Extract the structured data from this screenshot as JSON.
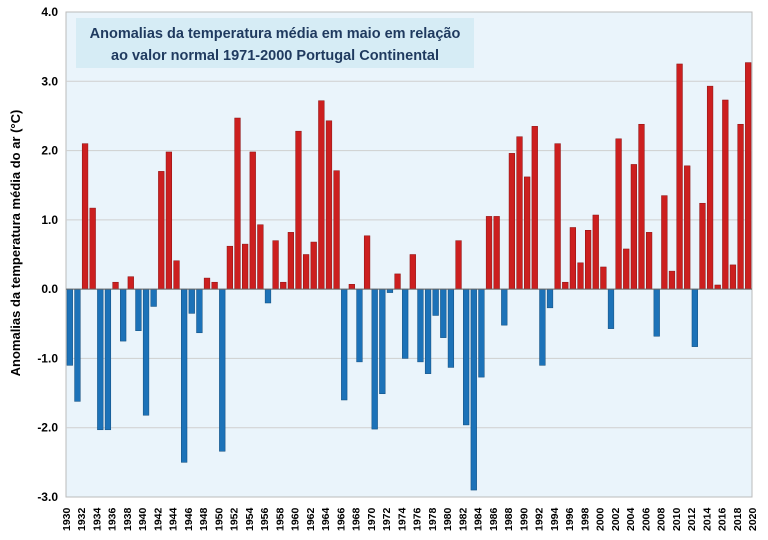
{
  "chart_data": {
    "type": "bar",
    "title_lines": [
      "Anomalias da temperatura média em maio em relação",
      "ao valor normal 1971-2000 Portugal Continental"
    ],
    "ylabel": "Anomalias da temperatura média do ar (°C)",
    "xlabel": "",
    "ylim": [
      -3.0,
      4.0
    ],
    "yticks": [
      "4.0",
      "3.0",
      "2.0",
      "1.0",
      "0.0",
      "-1.0",
      "-2.0",
      "-3.0"
    ],
    "ytick_values": [
      4,
      3,
      2,
      1,
      0,
      -1,
      -2,
      -3
    ],
    "x_start": 1931,
    "x_end": 2020,
    "xtick_labels": [
      "1930",
      "1932",
      "1934",
      "1936",
      "1938",
      "1940",
      "1942",
      "1944",
      "1946",
      "1948",
      "1950",
      "1952",
      "1954",
      "1956",
      "1958",
      "1960",
      "1962",
      "1964",
      "1966",
      "1968",
      "1970",
      "1972",
      "1974",
      "1976",
      "1978",
      "1980",
      "1982",
      "1984",
      "1986",
      "1988",
      "1990",
      "1992",
      "1994",
      "1996",
      "1998",
      "2000",
      "2002",
      "2004",
      "2006",
      "2008",
      "2010",
      "2012",
      "2014",
      "2016",
      "2018",
      "2020"
    ],
    "xtick_years": [
      1930,
      1932,
      1934,
      1936,
      1938,
      1940,
      1942,
      1944,
      1946,
      1948,
      1950,
      1952,
      1954,
      1956,
      1958,
      1960,
      1962,
      1964,
      1966,
      1968,
      1970,
      1972,
      1974,
      1976,
      1978,
      1980,
      1982,
      1984,
      1986,
      1988,
      1990,
      1992,
      1994,
      1996,
      1998,
      2000,
      2002,
      2004,
      2006,
      2008,
      2010,
      2012,
      2014,
      2016,
      2018,
      2020
    ],
    "years": [
      1931,
      1932,
      1933,
      1934,
      1935,
      1936,
      1937,
      1938,
      1939,
      1940,
      1941,
      1942,
      1943,
      1944,
      1945,
      1946,
      1947,
      1948,
      1949,
      1950,
      1951,
      1952,
      1953,
      1954,
      1955,
      1956,
      1957,
      1958,
      1959,
      1960,
      1961,
      1962,
      1963,
      1964,
      1965,
      1966,
      1967,
      1968,
      1969,
      1970,
      1971,
      1972,
      1973,
      1974,
      1975,
      1976,
      1977,
      1978,
      1979,
      1980,
      1981,
      1982,
      1983,
      1984,
      1985,
      1986,
      1987,
      1988,
      1989,
      1990,
      1991,
      1992,
      1993,
      1994,
      1995,
      1996,
      1997,
      1998,
      1999,
      2000,
      2001,
      2002,
      2003,
      2004,
      2005,
      2006,
      2007,
      2008,
      2009,
      2010,
      2011,
      2012,
      2013,
      2014,
      2015,
      2016,
      2017,
      2018,
      2019,
      2020
    ],
    "values": [
      -1.1,
      -1.62,
      2.1,
      1.17,
      -2.03,
      -2.03,
      0.1,
      -0.75,
      0.18,
      -0.6,
      -1.82,
      -0.25,
      1.7,
      1.98,
      0.41,
      -2.5,
      -0.35,
      -0.63,
      0.16,
      0.1,
      -2.34,
      0.62,
      2.47,
      0.65,
      1.98,
      0.93,
      -0.2,
      0.7,
      0.1,
      0.82,
      2.28,
      0.5,
      0.68,
      2.72,
      2.43,
      1.71,
      -1.6,
      0.07,
      -1.05,
      0.77,
      -2.02,
      -1.51,
      -0.05,
      0.22,
      -1.0,
      0.5,
      -1.05,
      -1.22,
      -0.38,
      -0.7,
      -1.13,
      0.7,
      -1.96,
      -2.9,
      -1.27,
      1.05,
      1.05,
      -0.52,
      1.96,
      2.2,
      1.62,
      2.35,
      -1.1,
      -0.27,
      2.1,
      0.1,
      0.89,
      0.38,
      0.85,
      1.07,
      0.32,
      -0.57,
      2.17,
      0.58,
      1.8,
      2.38,
      0.82,
      -0.68,
      1.35,
      0.26,
      3.25,
      1.78,
      -0.83,
      1.24,
      2.93,
      0.06,
      2.73,
      0.35,
      2.38,
      3.27
    ],
    "positive_color": "#cc1f1f",
    "negative_color": "#1c72b8",
    "grid": true
  }
}
